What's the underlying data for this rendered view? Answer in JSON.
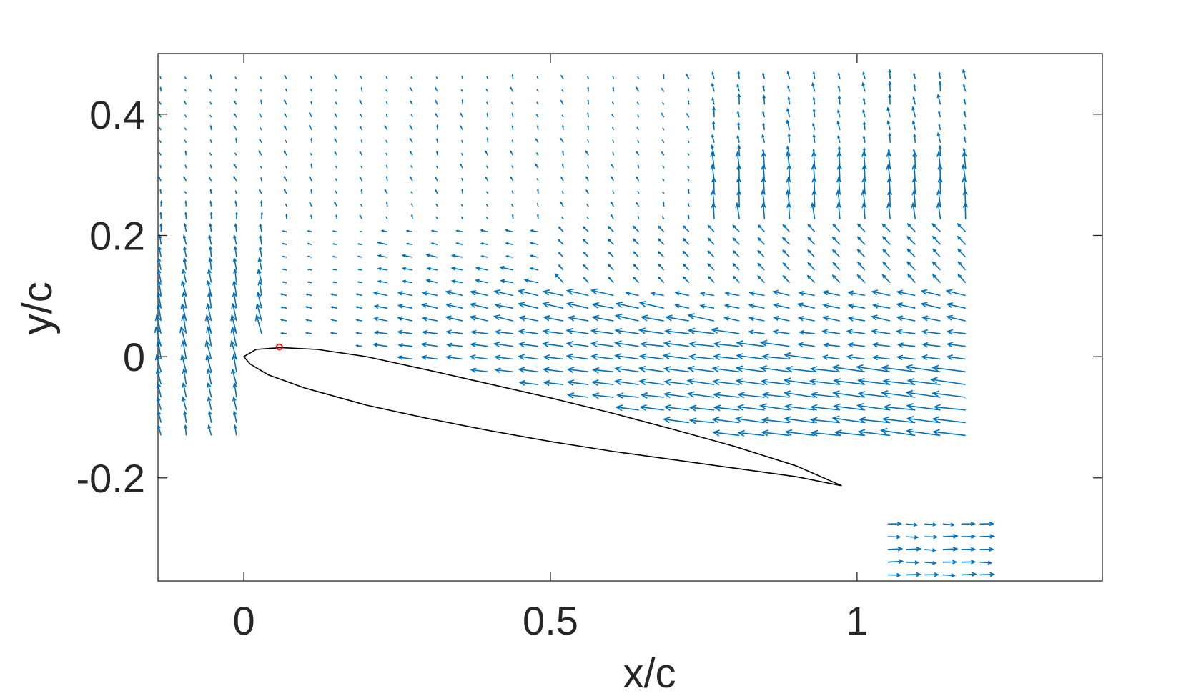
{
  "chart_data": {
    "type": "quiver",
    "title": "",
    "xlabel": "x/c",
    "ylabel": "y/c",
    "xlim": [
      -0.14,
      1.4
    ],
    "ylim": [
      -0.37,
      0.5
    ],
    "x_ticks": [
      {
        "value": 0,
        "label": "0"
      },
      {
        "value": 0.5,
        "label": "0.5"
      },
      {
        "value": 1,
        "label": "1"
      }
    ],
    "y_ticks": [
      {
        "value": 0.4,
        "label": "0.4"
      },
      {
        "value": 0.2,
        "label": "0.2"
      },
      {
        "value": 0,
        "label": "0"
      },
      {
        "value": -0.2,
        "label": "-0.2"
      }
    ],
    "grid": false,
    "legend": "none",
    "colors": {
      "vectors": "#0072BD",
      "airfoil": "#000000",
      "marker": "#FF0000",
      "axes": "#262626"
    },
    "airfoil": {
      "leading_edge": [
        0,
        0
      ],
      "trailing_edge": [
        0.975,
        -0.213
      ],
      "upper_surface": [
        [
          0.0,
          0.0
        ],
        [
          0.02,
          0.012
        ],
        [
          0.06,
          0.015
        ],
        [
          0.12,
          0.012
        ],
        [
          0.2,
          0.0
        ],
        [
          0.3,
          -0.022
        ],
        [
          0.4,
          -0.045
        ],
        [
          0.5,
          -0.068
        ],
        [
          0.6,
          -0.093
        ],
        [
          0.7,
          -0.12
        ],
        [
          0.8,
          -0.148
        ],
        [
          0.9,
          -0.18
        ],
        [
          0.975,
          -0.213
        ]
      ],
      "lower_surface": [
        [
          0.0,
          0.0
        ],
        [
          0.01,
          -0.012
        ],
        [
          0.04,
          -0.03
        ],
        [
          0.1,
          -0.052
        ],
        [
          0.2,
          -0.08
        ],
        [
          0.3,
          -0.102
        ],
        [
          0.4,
          -0.122
        ],
        [
          0.5,
          -0.14
        ],
        [
          0.6,
          -0.156
        ],
        [
          0.7,
          -0.17
        ],
        [
          0.8,
          -0.184
        ],
        [
          0.9,
          -0.198
        ],
        [
          0.975,
          -0.213
        ]
      ]
    },
    "marker_point": [
      0.058,
      0.016
    ],
    "vector_field": {
      "x_range": [
        -0.135,
        1.18
      ],
      "dx": 0.041,
      "y_range": [
        -0.13,
        0.47
      ],
      "dy": 0.021,
      "extra_region": {
        "x_range": [
          1.05,
          1.2
        ],
        "y_range": [
          -0.36,
          -0.27
        ],
        "dominant_direction": "right"
      },
      "description_of_flow": {
        "freestream_direction": "leftward (vectors point toward -x)",
        "strong_region": "above upper surface from x/c 0.2 to 1.2, y/c -0.2 to 0.12",
        "leading_edge_region": "upward-turning vectors near x/c -0.14 to 0.05",
        "upper_region": "weak, mostly vertical vectors for y/c > 0.2"
      }
    }
  }
}
